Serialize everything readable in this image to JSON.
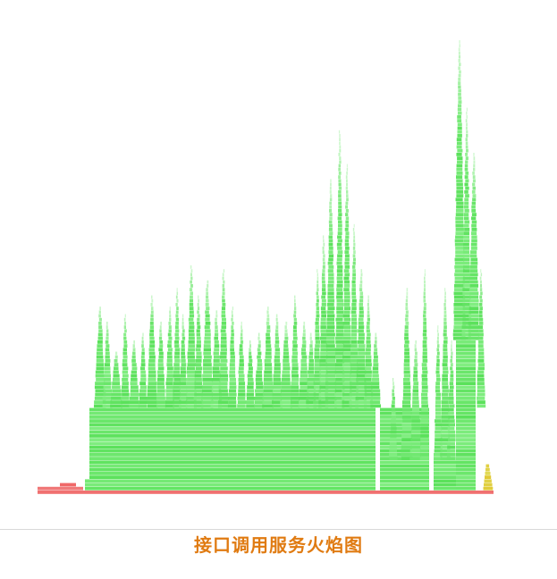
{
  "figure": {
    "caption": "接口调用服务火焰图",
    "caption_color": "#e07b12",
    "type": "flame graph",
    "colors": {
      "frame_green": "#6ef06e",
      "frame_red": "#f07070",
      "frame_yellow": "#e0d040"
    }
  }
}
